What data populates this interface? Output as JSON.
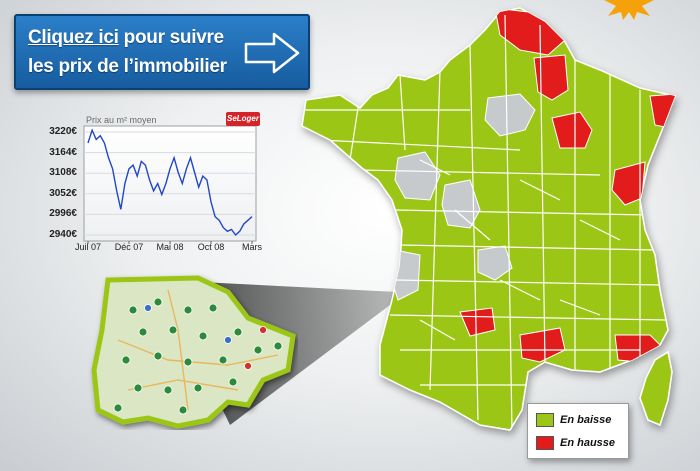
{
  "banner": {
    "link_text": "Cliquez ici",
    "line1_rest": " pour suivre",
    "line2": "les prix de l’immobilier"
  },
  "chart_data": {
    "type": "line",
    "title": "Prix au m² moyen",
    "logo_text": "SeLoger",
    "ylabels": [
      "3220€",
      "3164€",
      "3108€",
      "3052€",
      "2996€",
      "2940€"
    ],
    "xlabels": [
      "Juil 07",
      "Déc 07",
      "Mai 08",
      "Oct 08",
      "Mars"
    ],
    "ylim": [
      2940,
      3220
    ],
    "x": [
      0,
      2,
      4,
      6,
      8,
      10,
      12,
      14,
      16,
      18,
      20,
      22,
      24,
      26,
      28,
      30,
      32,
      34,
      36,
      38,
      40,
      42,
      44,
      46,
      48,
      50,
      52,
      54,
      56,
      58,
      60,
      62,
      64,
      66,
      68,
      70,
      72,
      74,
      76,
      78,
      80
    ],
    "values": [
      3190,
      3225,
      3200,
      3210,
      3190,
      3150,
      3120,
      3060,
      3010,
      3080,
      3120,
      3130,
      3100,
      3140,
      3130,
      3090,
      3060,
      3080,
      3050,
      3080,
      3120,
      3150,
      3110,
      3080,
      3120,
      3150,
      3110,
      3070,
      3100,
      3090,
      3030,
      2990,
      2980,
      2960,
      2950,
      2955,
      2940,
      2950,
      2970,
      2980,
      2990
    ],
    "line_color": "#2246c8"
  },
  "legend": {
    "items": [
      {
        "label": "En baisse",
        "color": "#9cc619"
      },
      {
        "label": "En hausse",
        "color": "#e21b1b"
      }
    ]
  },
  "map_colors": {
    "green": "#9cc619",
    "red": "#e21b1b",
    "grey": "#c6cacd"
  }
}
